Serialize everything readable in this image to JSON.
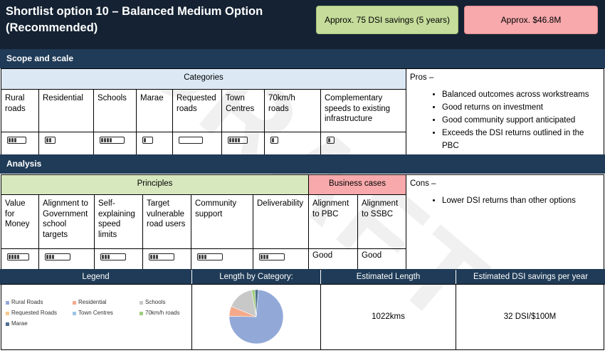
{
  "header": {
    "title": "Shortlist option 10 –  Balanced Medium Option (Recommended)",
    "savings_label": "Approx. 75 DSI savings (5 years)",
    "cost_label": "Approx. $46.8M"
  },
  "colors": {
    "navy": "#142233",
    "band": "#1f3b57",
    "green": "#c5dc9b",
    "red": "#f7a9ac",
    "blue_head": "#dce9f5",
    "green_head": "#d7e8be"
  },
  "scope": {
    "band_label": "Scope and scale",
    "categories_header": "Categories",
    "categories": [
      {
        "label": "Rural roads",
        "level": 3
      },
      {
        "label": "Residential",
        "level": 2
      },
      {
        "label": "Schools",
        "level": 4
      },
      {
        "label": "Marae",
        "level": 1
      },
      {
        "label": "Requested roads",
        "level": 0
      },
      {
        "label": "Town Centres",
        "level": 4
      },
      {
        "label": "70km/h roads",
        "level": 1
      },
      {
        "label": "Complementary speeds to existing infrastructure",
        "level": 1
      }
    ]
  },
  "pros": {
    "title": "Pros –",
    "items": [
      "Balanced outcomes across workstreams",
      "Good returns on investment",
      "Good community support anticipated",
      "Exceeds the DSI returns outlined in the PBC"
    ]
  },
  "analysis": {
    "band_label": "Analysis",
    "principles_header": "Principles",
    "business_header": "Business cases",
    "principles": [
      {
        "label": "Value for Money",
        "level": 4
      },
      {
        "label": "Alignment to Government school targets",
        "level": 3
      },
      {
        "label": "Self-explaining speed limits",
        "level": 3
      },
      {
        "label": "Target vulnerable road users",
        "level": 3
      },
      {
        "label": "Community support",
        "level": 3
      },
      {
        "label": "Deliverability",
        "level": 3
      }
    ],
    "business": [
      {
        "label": "Alignment to PBC",
        "value": "Good"
      },
      {
        "label": "Alignment to SSBC",
        "value": "Good"
      }
    ]
  },
  "cons": {
    "title": "Cons –",
    "items": [
      "Lower DSI returns than other options"
    ]
  },
  "footer": {
    "legend_header": "Legend",
    "length_header": "Length by Category:",
    "estimated_length_header": "Estimated Length",
    "dsi_header": "Estimated DSI savings per year",
    "estimated_length_value": "1022kms",
    "dsi_value": "32 DSI/$100M"
  },
  "watermark": "DRAFT",
  "chart_data": {
    "type": "pie",
    "title": "Length by Category:",
    "categories": [
      "Rural Roads",
      "Residential",
      "Schools",
      "Requested Roads",
      "Town Centres",
      "70km/h roads",
      "Marae"
    ],
    "values": [
      0.74,
      0.06,
      0.16,
      0.0,
      0.0,
      0.02,
      0.02
    ],
    "colors": [
      "#92a9d8",
      "#f4a98a",
      "#c8c8c8",
      "#f8c98e",
      "#9fc5e6",
      "#9fcc7e",
      "#4f6f8f"
    ]
  }
}
